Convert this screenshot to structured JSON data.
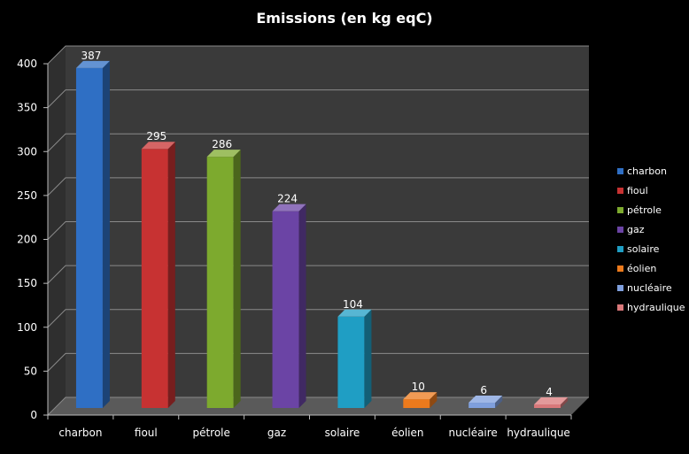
{
  "chart_data": {
    "type": "bar",
    "title": "Emissions (en kg eqC)",
    "categories": [
      "charbon",
      "fioul",
      "pétrole",
      "gaz",
      "solaire",
      "éolien",
      "nucléaire",
      "hydraulique"
    ],
    "values": [
      387,
      295,
      286,
      224,
      104,
      10,
      6,
      4
    ],
    "data_labels": [
      "387",
      "295",
      "286",
      "224",
      "104",
      "10",
      "6",
      "4"
    ],
    "ylim": [
      0,
      400
    ],
    "yticks": [
      0,
      50,
      100,
      150,
      200,
      250,
      300,
      350,
      400
    ],
    "ytick_labels": [
      "0",
      "50",
      "100",
      "150",
      "200",
      "250",
      "300",
      "350",
      "400"
    ],
    "grid": true,
    "legend_position": "right",
    "colors": [
      "#2f6fc4",
      "#c73232",
      "#7daa2e",
      "#6b44a5",
      "#1f9ec4",
      "#ec7a1c",
      "#7f9fdd",
      "#d9787a"
    ],
    "background": "#000000",
    "wall_color": "#3a3a3a",
    "text_color": "#ffffff"
  }
}
